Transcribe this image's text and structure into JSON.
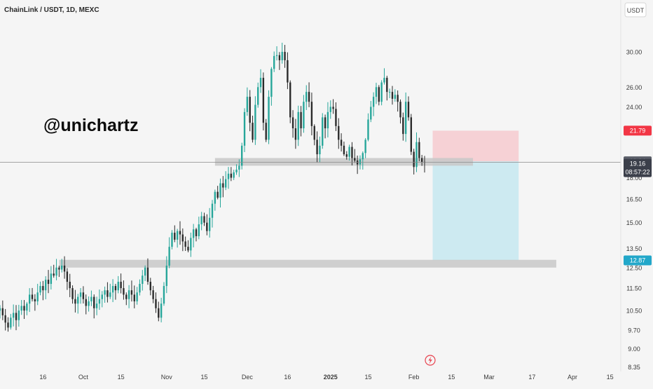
{
  "header": {
    "symbol_title": "ChainLink / USDT, 1D, MEXC",
    "currency_button": "USDT"
  },
  "watermark": {
    "handle": "@unichartz"
  },
  "colors": {
    "background": "#f5f5f5",
    "up": "#26a69a",
    "down": "#2a2a2a",
    "zone": "#c8c8c8",
    "stop_zone": "#f6cdd2",
    "target_zone": "#c9e9f1",
    "stop_badge": "#f23645",
    "target_badge": "#22a7c9",
    "price_badge": "#3b3f4a",
    "axis_text": "#3a3a3a"
  },
  "chart_data": {
    "type": "candlestick",
    "title": "ChainLink / USDT, 1D, MEXC",
    "y_scale": "log",
    "ylim": [
      8.2,
      34
    ],
    "y_ticks": [
      {
        "value": 30,
        "label": "30.00"
      },
      {
        "value": 26,
        "label": "26.00"
      },
      {
        "value": 24,
        "label": "24.00"
      },
      {
        "value": 18,
        "label": "18.00"
      },
      {
        "value": 16.5,
        "label": "16.50"
      },
      {
        "value": 15,
        "label": "15.00"
      },
      {
        "value": 13.5,
        "label": "13.50"
      },
      {
        "value": 12.5,
        "label": "12.50"
      },
      {
        "value": 11.5,
        "label": "11.50"
      },
      {
        "value": 10.5,
        "label": "10.50"
      },
      {
        "value": 9.7,
        "label": "9.70"
      },
      {
        "value": 9,
        "label": "9.00"
      },
      {
        "value": 8.35,
        "label": "8.35"
      }
    ],
    "x_ticks": [
      {
        "date": "2024-09-16",
        "label": "16"
      },
      {
        "date": "2024-10-01",
        "label": "Oct"
      },
      {
        "date": "2024-10-15",
        "label": "15"
      },
      {
        "date": "2024-11-01",
        "label": "Nov"
      },
      {
        "date": "2024-11-15",
        "label": "15"
      },
      {
        "date": "2024-12-01",
        "label": "Dec"
      },
      {
        "date": "2024-12-16",
        "label": "16"
      },
      {
        "date": "2025-01-01",
        "label": "2025",
        "bold": true
      },
      {
        "date": "2025-01-15",
        "label": "15"
      },
      {
        "date": "2025-02-01",
        "label": "Feb"
      },
      {
        "date": "2025-02-15",
        "label": "15"
      },
      {
        "date": "2025-03-01",
        "label": "Mar"
      },
      {
        "date": "2025-03-17",
        "label": "17"
      },
      {
        "date": "2025-04-01",
        "label": "Apr"
      },
      {
        "date": "2025-04-15",
        "label": "15"
      }
    ],
    "x_range": [
      "2024-08-31",
      "2025-04-19"
    ],
    "start_date": "2024-08-31",
    "closes": [
      10.6,
      10.3,
      10.0,
      9.8,
      10.2,
      10.4,
      10.1,
      10.5,
      10.7,
      10.5,
      10.8,
      11.2,
      11.0,
      10.9,
      11.3,
      11.6,
      11.4,
      11.9,
      11.7,
      12.2,
      12.1,
      12.5,
      12.4,
      12.6,
      12.3,
      11.8,
      11.5,
      11.0,
      10.8,
      11.1,
      11.3,
      11.0,
      10.7,
      10.9,
      11.1,
      10.6,
      10.8,
      11.0,
      11.2,
      11.4,
      11.1,
      11.3,
      11.6,
      11.4,
      11.8,
      11.5,
      11.2,
      11.0,
      11.4,
      11.2,
      10.9,
      11.3,
      11.7,
      12.1,
      12.5,
      11.8,
      11.4,
      11.0,
      10.6,
      10.2,
      10.8,
      11.6,
      12.6,
      13.6,
      14.4,
      14.0,
      14.5,
      14.3,
      13.9,
      13.6,
      13.4,
      14.1,
      14.6,
      14.2,
      14.9,
      15.4,
      15.0,
      14.5,
      15.3,
      16.2,
      17.0,
      16.6,
      17.6,
      17.3,
      17.9,
      18.3,
      18.0,
      18.4,
      18.6,
      18.9,
      20.5,
      23.5,
      25.0,
      22.5,
      21.0,
      24.2,
      26.0,
      27.0,
      22.5,
      21.0,
      25.0,
      28.0,
      29.5,
      29.6,
      29.0,
      30.0,
      29.0,
      26.5,
      23.0,
      22.0,
      21.0,
      23.5,
      22.0,
      24.5,
      25.5,
      24.5,
      22.2,
      21.0,
      19.8,
      20.5,
      23.0,
      22.0,
      23.5,
      24.0,
      23.8,
      22.2,
      21.0,
      20.5,
      19.8,
      19.6,
      20.4,
      19.5,
      19.3,
      19.0,
      19.4,
      19.9,
      21.0,
      22.8,
      24.0,
      25.0,
      26.0,
      24.5,
      26.5,
      27.0,
      25.5,
      25.5,
      24.8,
      25.2,
      24.5,
      23.0,
      21.5,
      24.5,
      23.0,
      20.0,
      18.8,
      20.8,
      19.5,
      19.2,
      19.16
    ],
    "volatility_pattern": "pseudo-random wicks",
    "last_price": 19.16,
    "annotations": {
      "resistance_zone": {
        "low": 18.9,
        "high": 19.5,
        "from": "2024-11-19",
        "to": "2025-02-23"
      },
      "support_zone": {
        "low": 12.5,
        "high": 12.9,
        "from": "2024-09-22",
        "to": "2025-03-26"
      },
      "long_short_position": {
        "entry": 19.24,
        "stop": 21.79,
        "target": 12.87,
        "from": "2025-02-08",
        "to": "2025-03-12"
      }
    },
    "badges": {
      "stop": "21.79",
      "entry": "19.24",
      "current": "19.16",
      "countdown": "08:57:22",
      "target": "12.87"
    }
  }
}
